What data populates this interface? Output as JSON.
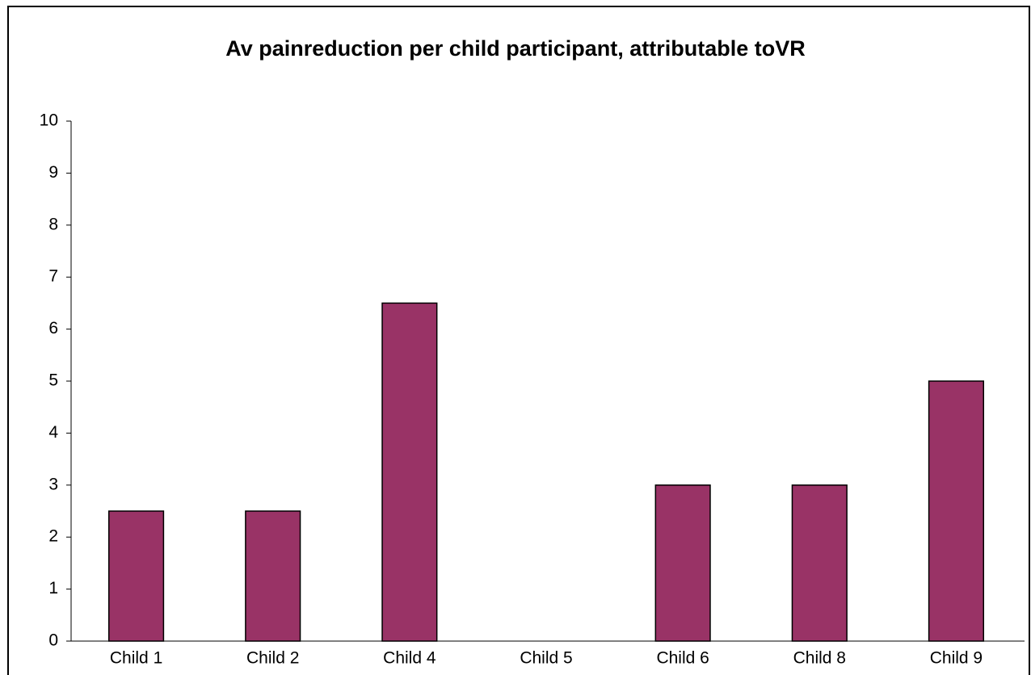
{
  "chart_data": {
    "type": "bar",
    "title": "Av painreduction per child participant, attributable toVR",
    "categories": [
      "Child 1",
      "Child 2",
      "Child 4",
      "Child 5",
      "Child 6",
      "Child 8",
      "Child 9"
    ],
    "values": [
      2.5,
      2.5,
      6.5,
      0,
      3,
      3,
      5
    ],
    "color": "#993366",
    "ylim": [
      0,
      10
    ],
    "yticks": [
      0,
      1,
      2,
      3,
      4,
      5,
      6,
      7,
      8,
      9,
      10
    ],
    "grid": false
  }
}
